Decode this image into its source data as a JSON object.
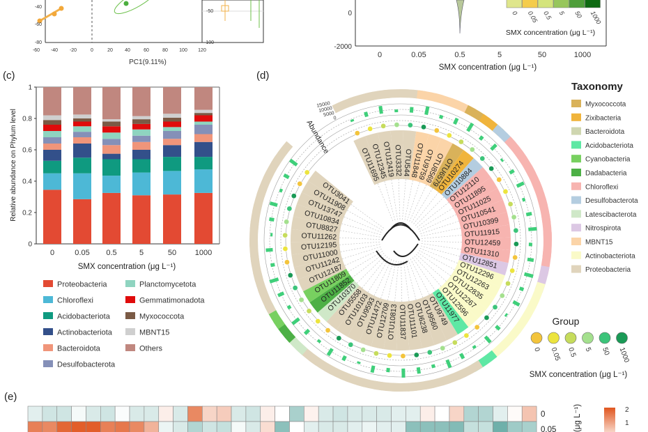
{
  "panel_labels": {
    "c": "(c)",
    "d": "(d)",
    "e": "(e)"
  },
  "panel_a": {
    "x_ticks": [
      "-60",
      "-40",
      "-20",
      "0",
      "20",
      "40",
      "60",
      "80",
      "100",
      "120"
    ],
    "y_ticks": [
      "-40",
      "-60",
      "-80"
    ],
    "xlabel": "PC1(9.11%)",
    "inset_ticks": [
      "-50",
      "-100"
    ]
  },
  "panel_b": {
    "y_ticks": [
      "0",
      "-2000"
    ],
    "x_ticks": [
      "0",
      "0.05",
      "0.5",
      "5",
      "50",
      "1000"
    ],
    "xlabel": "SMX concentration (μg L⁻¹)",
    "legend": {
      "labels": [
        "0",
        "0.05",
        "0.5",
        "5",
        "50",
        "1000"
      ],
      "colors": [
        "#dfe68c",
        "#f4cc4c",
        "#d4e47c",
        "#97c65c",
        "#4f9e3a",
        "#0e6a12"
      ],
      "title": "SMX concentration (μg L⁻¹)"
    }
  },
  "chart_data": {
    "type": "bar",
    "stacked": true,
    "categories": [
      "0",
      "0.05",
      "0.5",
      "5",
      "50",
      "1000"
    ],
    "xlabel": "SMX concentration (μg L⁻¹)",
    "ylabel": "Relative abundance on Phylum level",
    "ylim": [
      0,
      1
    ],
    "y_ticks": [
      "0",
      "0.2",
      "0.4",
      "0.6",
      "0.8",
      "1"
    ],
    "legend_position": "bottom",
    "series": [
      {
        "name": "Proteobacteria",
        "color": "#e34a33",
        "values": [
          0.345,
          0.285,
          0.325,
          0.31,
          0.315,
          0.325
        ]
      },
      {
        "name": "Chloroflexi",
        "color": "#4db8d6",
        "values": [
          0.105,
          0.165,
          0.11,
          0.145,
          0.15,
          0.15
        ]
      },
      {
        "name": "Acidobacteriota",
        "color": "#0f9a80",
        "values": [
          0.08,
          0.1,
          0.105,
          0.085,
          0.09,
          0.08
        ]
      },
      {
        "name": "Actinobacteriota",
        "color": "#33508a",
        "values": [
          0.07,
          0.09,
          0.035,
          0.06,
          0.075,
          0.095
        ]
      },
      {
        "name": "Bacteroidota",
        "color": "#f0957a",
        "values": [
          0.04,
          0.04,
          0.055,
          0.05,
          0.04,
          0.05
        ]
      },
      {
        "name": "Desulfobacterota",
        "color": "#8590b8",
        "values": [
          0.04,
          0.035,
          0.04,
          0.04,
          0.05,
          0.06
        ]
      },
      {
        "name": "Planctomycetota",
        "color": "#8fd4c0",
        "values": [
          0.04,
          0.035,
          0.04,
          0.04,
          0.025,
          0.02
        ]
      },
      {
        "name": "Gemmatimonadota",
        "color": "#e00b0b",
        "values": [
          0.04,
          0.03,
          0.04,
          0.035,
          0.035,
          0.04
        ]
      },
      {
        "name": "Myxococcota",
        "color": "#7a5a45",
        "values": [
          0.03,
          0.02,
          0.03,
          0.03,
          0.025,
          0.015
        ]
      },
      {
        "name": "MBNT15",
        "color": "#cfcfcf",
        "values": [
          0.03,
          0.025,
          0.015,
          0.02,
          0.025,
          0.02
        ]
      },
      {
        "name": "Others",
        "color": "#c0877f",
        "values": [
          0.18,
          0.175,
          0.205,
          0.185,
          0.17,
          0.145
        ]
      }
    ]
  },
  "panel_d": {
    "abundance_label": "Abundance",
    "abundance_ticks": [
      "15000",
      "10000",
      "5000",
      "0"
    ],
    "taxonomy_title": "Taxonomy",
    "taxonomy": [
      {
        "name": "Myxococcota",
        "color": "#d9b25a"
      },
      {
        "name": "Zixibacteria",
        "color": "#f0b43c"
      },
      {
        "name": "Bacteroidota",
        "color": "#cfd6b0"
      },
      {
        "name": "Acidobacteriota",
        "color": "#5ee8a4"
      },
      {
        "name": "Cyanobacteria",
        "color": "#78d060"
      },
      {
        "name": "Dadabacteria",
        "color": "#4db046"
      },
      {
        "name": "Chloroflexi",
        "color": "#f7b4b0"
      },
      {
        "name": "Desulfobacterota",
        "color": "#b4cde0"
      },
      {
        "name": "Latescibacterota",
        "color": "#cfe8c8"
      },
      {
        "name": "Nitrospirota",
        "color": "#dcc8e4"
      },
      {
        "name": "MBNT15",
        "color": "#fbd4a8"
      },
      {
        "name": "Actinobacteriota",
        "color": "#fafac8"
      },
      {
        "name": "Proteobacteria",
        "color": "#e0d4bc"
      }
    ],
    "group_title": "Group",
    "groups": [
      {
        "label": "0",
        "color": "#f3c43c"
      },
      {
        "label": "0.05",
        "color": "#ece43e"
      },
      {
        "label": "0.5",
        "color": "#c6dc5c"
      },
      {
        "label": "5",
        "color": "#a4e08e"
      },
      {
        "label": "50",
        "color": "#3cc47a"
      },
      {
        "label": "1000",
        "color": "#1a9a56"
      }
    ],
    "group_axis_title": "SMX concentration (μg L⁻¹)",
    "otus": [
      {
        "id": "OTU11695",
        "tax": "Proteobacteria"
      },
      {
        "id": "OTU12345",
        "tax": "Proteobacteria"
      },
      {
        "id": "OTU12419",
        "tax": "Proteobacteria"
      },
      {
        "id": "OTU3332",
        "tax": "Proteobacteria"
      },
      {
        "id": "OTU544",
        "tax": "Proteobacteria"
      },
      {
        "id": "OTU11848",
        "tax": "MBNT15"
      },
      {
        "id": "OTU9759",
        "tax": "MBNT15"
      },
      {
        "id": "OTU8569",
        "tax": "MBNT15"
      },
      {
        "id": "OTU6579",
        "tax": "Myxococcota"
      },
      {
        "id": "OTU10274",
        "tax": "Zixibacteria"
      },
      {
        "id": "OTU10884",
        "tax": "Desulfobacterota"
      },
      {
        "id": "OTU12110",
        "tax": "Chloroflexi"
      },
      {
        "id": "OTU11895",
        "tax": "Chloroflexi"
      },
      {
        "id": "OTU11025",
        "tax": "Chloroflexi"
      },
      {
        "id": "OTU10541",
        "tax": "Chloroflexi"
      },
      {
        "id": "OTU10399",
        "tax": "Chloroflexi"
      },
      {
        "id": "OTU11915",
        "tax": "Chloroflexi"
      },
      {
        "id": "OTU12459",
        "tax": "Chloroflexi"
      },
      {
        "id": "OTU11310",
        "tax": "Chloroflexi"
      },
      {
        "id": "OTU12851",
        "tax": "Nitrospirota"
      },
      {
        "id": "OTU12296",
        "tax": "Actinobacteriota"
      },
      {
        "id": "OTU12263",
        "tax": "Actinobacteriota"
      },
      {
        "id": "OTU12835",
        "tax": "Actinobacteriota"
      },
      {
        "id": "OTU12267",
        "tax": "Actinobacteriota"
      },
      {
        "id": "OTU12596",
        "tax": "Actinobacteriota"
      },
      {
        "id": "OTU11977",
        "tax": "Acidobacteriota"
      },
      {
        "id": "OTU9749",
        "tax": "Proteobacteria"
      },
      {
        "id": "OTU9560",
        "tax": "Proteobacteria"
      },
      {
        "id": "OTU6238",
        "tax": "Proteobacteria"
      },
      {
        "id": "OTU11101",
        "tax": "Proteobacteria"
      },
      {
        "id": "OTU11837",
        "tax": "Proteobacteria"
      },
      {
        "id": "OTU10813",
        "tax": "Proteobacteria"
      },
      {
        "id": "OTU12709",
        "tax": "Proteobacteria"
      },
      {
        "id": "OTU11472",
        "tax": "Proteobacteria"
      },
      {
        "id": "OTU9593",
        "tax": "Proteobacteria"
      },
      {
        "id": "OTU10103",
        "tax": "Proteobacteria"
      },
      {
        "id": "OTU5558",
        "tax": "Proteobacteria"
      },
      {
        "id": "OTU10370",
        "tax": "Latescibacterota"
      },
      {
        "id": "OTU11852",
        "tax": "Dadabacteria"
      },
      {
        "id": "OTU11809",
        "tax": "Cyanobacteria"
      },
      {
        "id": "OTU12187",
        "tax": "Proteobacteria"
      },
      {
        "id": "OTU11242",
        "tax": "Proteobacteria"
      },
      {
        "id": "OTU11000",
        "tax": "Proteobacteria"
      },
      {
        "id": "OTU12195",
        "tax": "Proteobacteria"
      },
      {
        "id": "OTU11262",
        "tax": "Proteobacteria"
      },
      {
        "id": "OTU8827",
        "tax": "Proteobacteria"
      },
      {
        "id": "OTU10834",
        "tax": "Proteobacteria"
      },
      {
        "id": "OTU13747",
        "tax": "Proteobacteria"
      },
      {
        "id": "OTU11908",
        "tax": "Proteobacteria"
      },
      {
        "id": "OTU3041",
        "tax": "Proteobacteria"
      }
    ]
  },
  "panel_e": {
    "row_labels": [
      "0",
      "0.05"
    ],
    "axis_unit": "(μg L⁻¹)",
    "colorbar_ticks": [
      "2",
      "1"
    ],
    "low_color": "#3f968e",
    "high_color": "#e0561f",
    "rows": [
      [
        -0.3,
        -0.5,
        -0.5,
        -0.1,
        -0.4,
        -0.5,
        -0.05,
        -0.4,
        -0.4,
        0.2,
        -0.4,
        1.4,
        0.5,
        0.6,
        -0.4,
        -0.5,
        0.2,
        0,
        -0.9,
        0.15,
        -0.4,
        -0.5,
        -0.4,
        -0.4,
        -0.4,
        -0.3,
        -0.3,
        0.2,
        0,
        0.5,
        -0.8,
        -0.8,
        -0.3,
        0.05,
        0.7
      ],
      [
        1.5,
        1.4,
        1.8,
        1.9,
        1.9,
        1.5,
        1.6,
        1.4,
        0.9,
        -0.2,
        -0.4,
        -0.8,
        -0.5,
        -0.6,
        -0.1,
        -0.4,
        0.4,
        -1.2,
        0,
        -0.3,
        -0.4,
        -0.4,
        -0.3,
        -0.2,
        -0.3,
        -0.3,
        -1.2,
        -1.2,
        -1.2,
        -1.3,
        -0.6,
        -0.6,
        -1.5,
        -1.0,
        -0.9
      ]
    ]
  }
}
